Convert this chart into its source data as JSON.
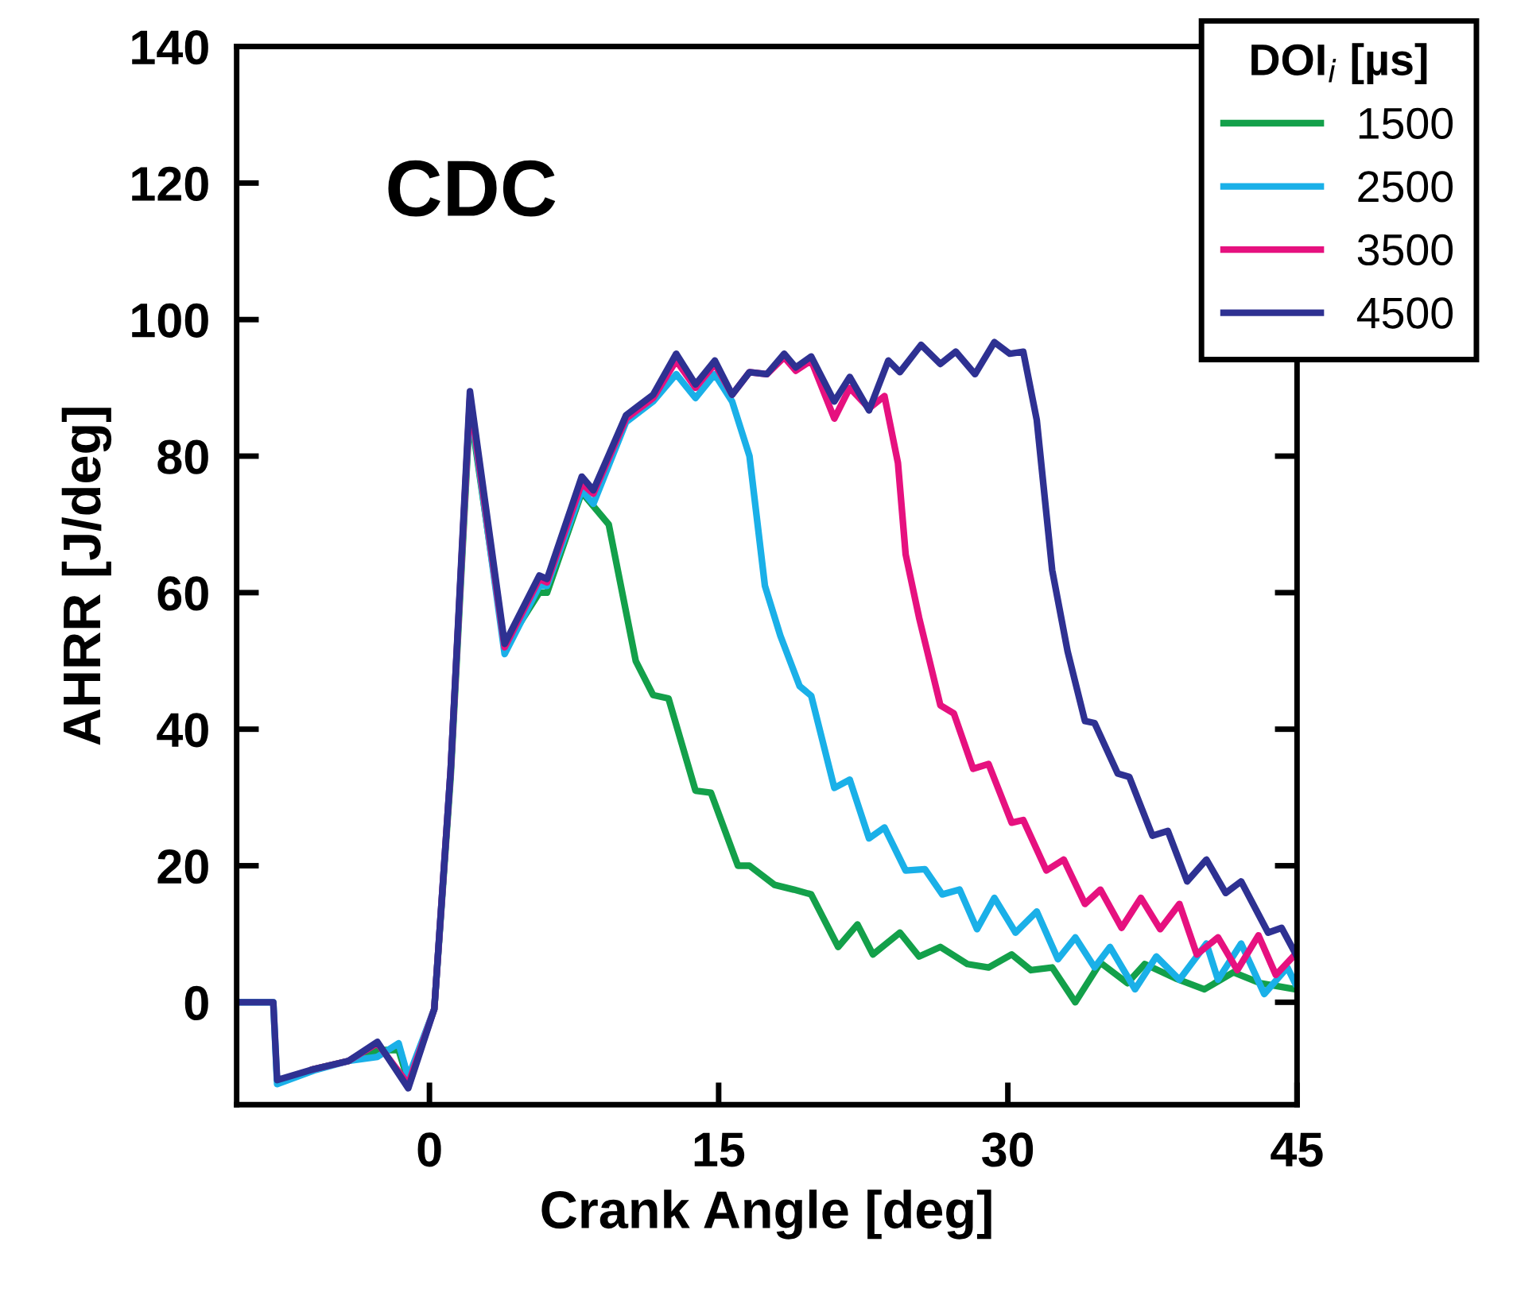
{
  "chart_data": {
    "type": "line",
    "xlabel": "Crank Angle [deg]",
    "ylabel": "AHRR [J/deg]",
    "legend_title": "DOI$_{i}$ [µs]",
    "annotations": [
      "CDC"
    ],
    "xlim": [
      -10,
      45
    ],
    "xticks": [
      0,
      15,
      30,
      45
    ],
    "ylim": [
      -15,
      140
    ],
    "yticks": [
      0,
      20,
      40,
      60,
      80,
      100,
      120,
      140
    ],
    "grid": false,
    "legend": "top right",
    "marker": "none",
    "line_style": "solid",
    "series": [
      {
        "name": "1500",
        "color": "#13a04a",
        "x": [
          -6,
          -4.2,
          -2.7,
          -1.6,
          -1.1,
          0.25,
          1.1,
          2.1,
          3.9,
          5.7,
          6.1,
          7.9,
          9.3,
          10.7,
          11.6,
          12.4,
          13.8,
          14.6,
          16,
          16.6,
          17.9,
          18.9,
          19.8,
          21.2,
          22.2,
          23,
          24.4,
          25.4,
          26.5,
          27.9,
          29,
          30.2,
          31.2,
          32.3,
          33.5,
          34.8,
          36.2,
          37.1,
          38.7,
          40.2,
          41.7,
          43.1,
          44.9
        ],
        "values": [
          -9.8,
          -8.6,
          -7,
          -7,
          -11.5,
          -1,
          33,
          87,
          52,
          60,
          60,
          74.7,
          70,
          50,
          45,
          44.5,
          31,
          30.7,
          20,
          20,
          17.2,
          16.5,
          15.8,
          8.1,
          11.4,
          7,
          10.2,
          6.7,
          8.1,
          5.6,
          5.1,
          7,
          4.7,
          5.1,
          0,
          5.8,
          2.8,
          5.6,
          3.5,
          1.9,
          4.4,
          2.8,
          1.9
        ]
      },
      {
        "name": "2500",
        "color": "#1ab0e8",
        "x": [
          -10,
          -8.1,
          -7.9,
          -6,
          -4.2,
          -2.7,
          -1.6,
          -1.1,
          0.25,
          1.1,
          2.1,
          3.9,
          5.7,
          6.1,
          7.9,
          8.5,
          10.2,
          11.6,
          12.8,
          13.8,
          14.8,
          15.7,
          16.6,
          17.4,
          18.2,
          19.2,
          19.8,
          21,
          21.8,
          22.8,
          23.6,
          24.7,
          25.7,
          26.6,
          27.5,
          28.4,
          29.3,
          30.4,
          31.5,
          32.6,
          33.5,
          34.5,
          35.3,
          36.6,
          37.7,
          38.9,
          40.3,
          40.9,
          42.1,
          43.3,
          44.5,
          44.9
        ],
        "values": [
          0,
          0,
          -12,
          -10,
          -8.6,
          -8,
          -6,
          -11,
          -1,
          34,
          88,
          51,
          61,
          61,
          75,
          73,
          85,
          88,
          92,
          88.5,
          92,
          88,
          80,
          61,
          53.7,
          46.3,
          44.9,
          31.4,
          32.6,
          24,
          25.6,
          19.3,
          19.5,
          15.8,
          16.5,
          10.7,
          15.3,
          10.2,
          13.3,
          6.3,
          9.5,
          5.1,
          8.1,
          1.9,
          6.7,
          3.3,
          8.6,
          3.3,
          8.6,
          1.2,
          5.1,
          2.8
        ]
      },
      {
        "name": "3500",
        "color": "#e6117f",
        "x": [
          -6,
          -4.2,
          -2.7,
          -1.1,
          0.25,
          1.1,
          2.1,
          3.9,
          5.7,
          6.1,
          7.9,
          8.5,
          10.2,
          11.6,
          12.8,
          13.8,
          14.8,
          15.7,
          16.6,
          17.5,
          18.4,
          19,
          19.8,
          21,
          21.8,
          22.8,
          23.6,
          24.3,
          24.7,
          25.4,
          26.5,
          27.2,
          28.2,
          29,
          30.2,
          30.8,
          32,
          32.9,
          34,
          34.8,
          35.9,
          36.9,
          37.9,
          38.9,
          39.8,
          40.9,
          41.9,
          43,
          43.9,
          44.9
        ],
        "values": [
          -9.8,
          -8.6,
          -6,
          -12,
          -1,
          34,
          88.5,
          52,
          62,
          61.5,
          76,
          74.5,
          85.5,
          88.5,
          94,
          90,
          93.5,
          89,
          92.3,
          92,
          94.5,
          92.5,
          94,
          85.5,
          90,
          87,
          88.8,
          79,
          65.6,
          56.3,
          43.5,
          42.3,
          34.2,
          34.9,
          26.3,
          26.7,
          19.3,
          20.9,
          14.4,
          16.5,
          10.9,
          15.3,
          10.7,
          14.4,
          7,
          9.5,
          4.7,
          9.8,
          4,
          7
        ]
      },
      {
        "name": "4500",
        "color": "#2e3192",
        "x": [
          -10,
          -8.1,
          -7.9,
          -6,
          -4.2,
          -2.7,
          -1.1,
          0.25,
          1.1,
          2.1,
          3.9,
          5.7,
          6.1,
          7.9,
          8.5,
          10.2,
          11.6,
          12.8,
          13.8,
          14.8,
          15.7,
          16.6,
          17.5,
          18.4,
          19,
          19.8,
          21,
          21.8,
          22.8,
          23.8,
          24.4,
          25.5,
          26.5,
          27.3,
          28.3,
          29.3,
          30.1,
          30.8,
          31.5,
          32.3,
          33.1,
          34,
          34.5,
          35.7,
          36.3,
          37.5,
          38.3,
          39.3,
          40.3,
          41.3,
          42.1,
          43.5,
          44.2,
          45
        ],
        "values": [
          0,
          0,
          -11.4,
          -9.8,
          -8.6,
          -5.8,
          -12.6,
          -1,
          34,
          89.5,
          52.5,
          62.5,
          62,
          77,
          75,
          86,
          89,
          95,
          90.5,
          94,
          89,
          92.3,
          92,
          95,
          93,
          94.6,
          88,
          91.6,
          86.7,
          94,
          92.3,
          96.3,
          93.5,
          95.3,
          92,
          96.7,
          95,
          95.3,
          85.3,
          63.3,
          51.4,
          41.2,
          40.9,
          33.5,
          33,
          24.4,
          25.1,
          17.7,
          20.9,
          16,
          17.7,
          10.2,
          10.9,
          6.7
        ]
      }
    ]
  }
}
